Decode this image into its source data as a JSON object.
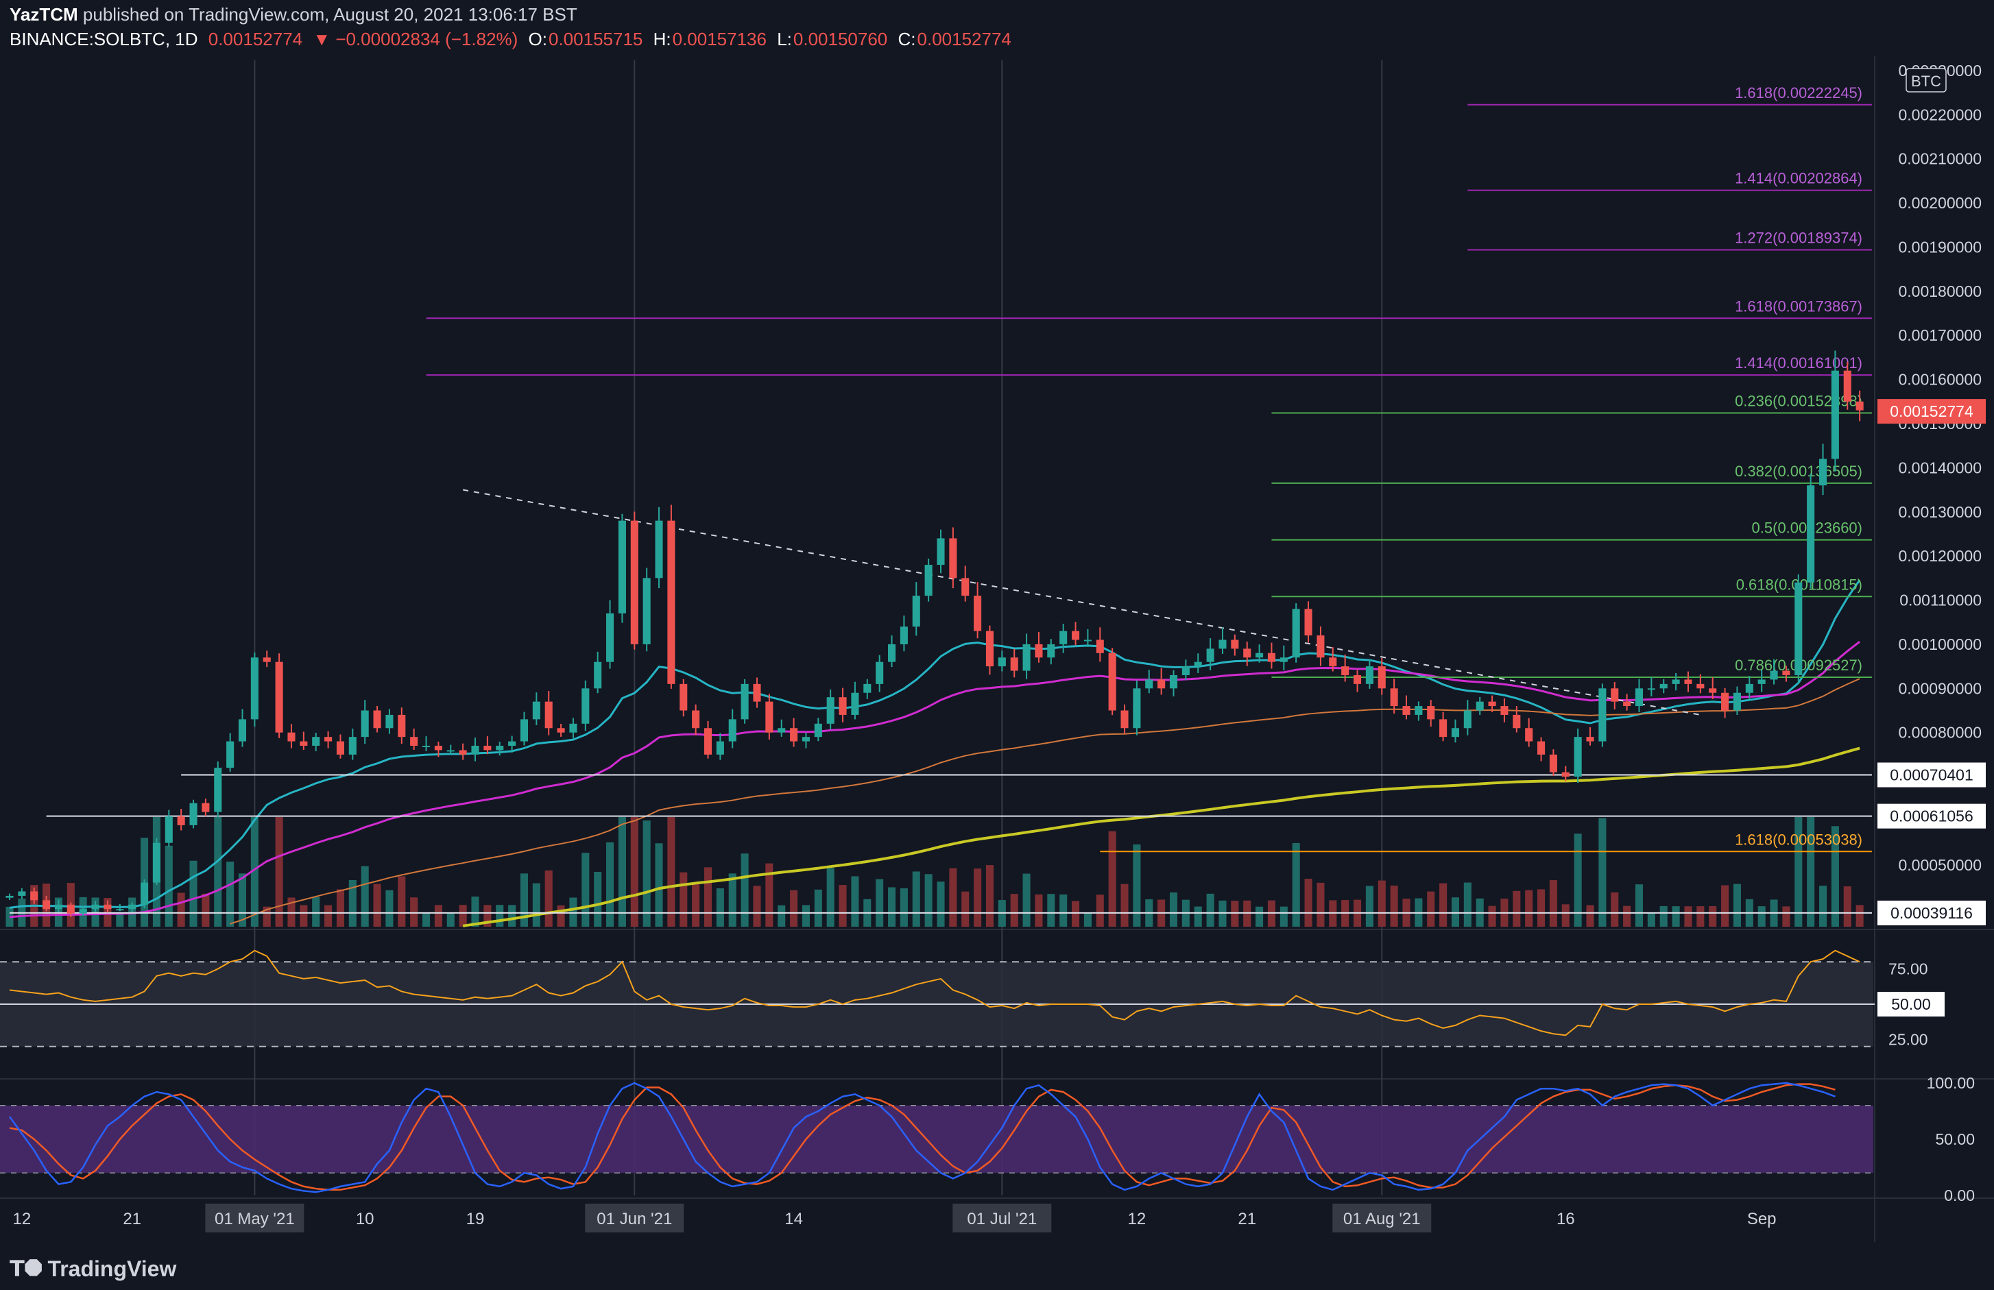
{
  "header": {
    "author": "YazTCM",
    "published": "published on TradingView.com, August 20, 2021 13:06:17 BST",
    "symbol": "BINANCE:SOLBTC, 1D",
    "last": "0.00152774",
    "change": "▼ −0.00002834 (−1.82%)",
    "o_label": "O:",
    "o_value": "0.00155715",
    "h_label": "H:",
    "h_value": "0.00157136",
    "l_label": "L:",
    "l_value": "0.00150760",
    "c_label": "C:",
    "c_value": "0.00152774"
  },
  "footer": {
    "brand": "TradingView",
    "logo_icon": "tradingview-logo-icon"
  },
  "colors": {
    "background": "#131722",
    "up": "#26a69a",
    "down": "#ef5350",
    "vol_up": "#1f6b67",
    "vol_down": "#7d2e33",
    "ema20": "#26b5c4",
    "ema50": "#d02cd0",
    "ema100": "#d2773c",
    "ema200": "#c9c924",
    "fib_purple": "#9c27b0",
    "fib_green": "#4caf50",
    "fib_orange": "#ff9800",
    "rsi": "#f7a21b",
    "stoch_k": "#2962ff",
    "stoch_d": "#f15a24",
    "stoch_band": "#4a2a6e"
  },
  "chart_data": {
    "type": "candlestick",
    "quote_currency": "BTC",
    "current_price_label": "0.00152774",
    "y_axis_ticks": [
      "0.00230000",
      "0.00220000",
      "0.00210000",
      "0.00200000",
      "0.00190000",
      "0.00180000",
      "0.00170000",
      "0.00160000",
      "0.00150000",
      "0.00140000",
      "0.00130000",
      "0.00120000",
      "0.00110000",
      "0.00100000",
      "0.00090000",
      "0.00080000",
      "0.00050000"
    ],
    "y_range": [
      0.00036,
      0.00232
    ],
    "x_axis_ticks": [
      {
        "label": "12",
        "date": "2021-04-12"
      },
      {
        "label": "21",
        "date": "2021-04-21"
      },
      {
        "label": "01 May '21",
        "date": "2021-05-01",
        "highlight": true
      },
      {
        "label": "10",
        "date": "2021-05-10"
      },
      {
        "label": "19",
        "date": "2021-05-19"
      },
      {
        "label": "01 Jun '21",
        "date": "2021-06-01",
        "highlight": true
      },
      {
        "label": "14",
        "date": "2021-06-14"
      },
      {
        "label": "01 Jul '21",
        "date": "2021-07-01",
        "highlight": true
      },
      {
        "label": "12",
        "date": "2021-07-12"
      },
      {
        "label": "21",
        "date": "2021-07-21"
      },
      {
        "label": "01 Aug '21",
        "date": "2021-08-01",
        "highlight": true
      },
      {
        "label": "16",
        "date": "2021-08-16"
      },
      {
        "label": "Sep",
        "date": "2021-09-01"
      }
    ],
    "x_range": [
      "2021-04-11",
      "2021-09-10"
    ],
    "first_candle_date": "2021-04-11",
    "closes": [
      0.00043,
      0.00044,
      0.00042,
      0.0004,
      0.00041,
      0.00039,
      0.0004,
      0.00041,
      0.0004,
      0.0004,
      0.00041,
      0.00046,
      0.00055,
      0.00061,
      0.00059,
      0.00064,
      0.00062,
      0.00072,
      0.00078,
      0.00083,
      0.00097,
      0.00096,
      0.0008,
      0.00078,
      0.00077,
      0.00079,
      0.00078,
      0.00075,
      0.00079,
      0.00085,
      0.00081,
      0.00084,
      0.00079,
      0.00077,
      0.00077,
      0.00076,
      0.00076,
      0.00075,
      0.00077,
      0.00076,
      0.00077,
      0.00078,
      0.00083,
      0.00087,
      0.00081,
      0.0008,
      0.00082,
      0.0009,
      0.00096,
      0.00107,
      0.00128,
      0.001,
      0.00115,
      0.00128,
      0.00091,
      0.00085,
      0.00081,
      0.00075,
      0.00078,
      0.00083,
      0.00091,
      0.00087,
      0.0008,
      0.00081,
      0.00078,
      0.00079,
      0.00082,
      0.00088,
      0.00084,
      0.00089,
      0.00091,
      0.00096,
      0.001,
      0.00104,
      0.00111,
      0.00118,
      0.00124,
      0.00115,
      0.00111,
      0.00103,
      0.00095,
      0.00097,
      0.00094,
      0.001,
      0.00097,
      0.001,
      0.00103,
      0.00101,
      0.00101,
      0.00098,
      0.00085,
      0.00081,
      0.0009,
      0.00092,
      0.0009,
      0.00093,
      0.00095,
      0.00096,
      0.00099,
      0.00101,
      0.00099,
      0.00097,
      0.00098,
      0.00096,
      0.00097,
      0.00108,
      0.00102,
      0.00097,
      0.00095,
      0.00093,
      0.00091,
      0.00095,
      0.0009,
      0.00086,
      0.00084,
      0.00086,
      0.00083,
      0.00079,
      0.00081,
      0.00085,
      0.00087,
      0.00086,
      0.00084,
      0.00081,
      0.00078,
      0.00075,
      0.00071,
      0.0007,
      0.00079,
      0.00078,
      0.0009,
      0.00087,
      0.00086,
      0.0009,
      0.0009,
      0.00091,
      0.00092,
      0.00091,
      0.0009,
      0.00089,
      0.00085,
      0.00089,
      0.00091,
      0.00092,
      0.00094,
      0.00093,
      0.00114,
      0.00136,
      0.00142,
      0.00162,
      0.00155,
      0.00153
    ],
    "overlay_lines": [
      {
        "name": "EMA 20",
        "color": "#26b5c4"
      },
      {
        "name": "EMA 50",
        "color": "#d02cd0"
      },
      {
        "name": "EMA 100",
        "color": "#d2773c"
      },
      {
        "name": "EMA 200",
        "color": "#c9c924"
      }
    ],
    "fib_levels": [
      {
        "label": "1.618(0.00222245)",
        "price": 0.00222245,
        "color": "#9c27b0",
        "from": "2021-08-08"
      },
      {
        "label": "1.414(0.00202864)",
        "price": 0.00202864,
        "color": "#9c27b0",
        "from": "2021-08-08"
      },
      {
        "label": "1.272(0.00189374)",
        "price": 0.00189374,
        "color": "#9c27b0",
        "from": "2021-08-08"
      },
      {
        "label": "1.618(0.00173867)",
        "price": 0.00173867,
        "color": "#9c27b0",
        "from": "2021-05-15"
      },
      {
        "label": "1.414(0.00161001)",
        "price": 0.00161001,
        "color": "#9c27b0",
        "from": "2021-05-15"
      },
      {
        "label": "0.236(0.00152398)",
        "price": 0.00152398,
        "color": "#4caf50",
        "from": "2021-07-23"
      },
      {
        "label": "0.382(0.00136505)",
        "price": 0.00136505,
        "color": "#4caf50",
        "from": "2021-07-23"
      },
      {
        "label": "0.5(0.00123660)",
        "price": 0.0012366,
        "color": "#4caf50",
        "from": "2021-07-23"
      },
      {
        "label": "0.618(0.00110815)",
        "price": 0.00110815,
        "color": "#4caf50",
        "from": "2021-07-23"
      },
      {
        "label": "0.786(0.00092527)",
        "price": 0.00092527,
        "color": "#4caf50",
        "from": "2021-07-23"
      },
      {
        "label": "1.618(0.00053038)",
        "price": 0.00053038,
        "color": "#ff9800",
        "from": "2021-07-09"
      }
    ],
    "support_levels": [
      {
        "label": "0.00070401",
        "price": 0.00070401,
        "from": "2021-04-25"
      },
      {
        "label": "0.00061056",
        "price": 0.00061056,
        "from": "2021-04-14"
      },
      {
        "label": "0.00039116",
        "price": 0.00039116,
        "from": "2021-04-11"
      }
    ],
    "trendline": {
      "from": {
        "date": "2021-05-18",
        "price": 0.00135
      },
      "to": {
        "date": "2021-08-27",
        "price": 0.00084
      }
    },
    "rsi": {
      "ticks": [
        "75.00",
        "50.00",
        "25.00"
      ],
      "midline_label": "50.00",
      "bands": [
        20,
        80
      ],
      "values": [
        60,
        59,
        58,
        57,
        58,
        55,
        53,
        52,
        53,
        54,
        55,
        59,
        70,
        72,
        70,
        72,
        71,
        75,
        80,
        82,
        88,
        84,
        72,
        70,
        68,
        69,
        67,
        65,
        66,
        67,
        62,
        63,
        59,
        57,
        56,
        55,
        54,
        53,
        55,
        54,
        55,
        56,
        60,
        64,
        58,
        56,
        58,
        63,
        66,
        71,
        80,
        59,
        53,
        56,
        50,
        48,
        47,
        46,
        47,
        49,
        54,
        51,
        49,
        49,
        48,
        48,
        50,
        53,
        50,
        53,
        54,
        56,
        58,
        61,
        64,
        66,
        68,
        60,
        57,
        53,
        48,
        49,
        47,
        51,
        49,
        50,
        50,
        50,
        50,
        49,
        41,
        39,
        45,
        47,
        45,
        48,
        49,
        50,
        51,
        52,
        50,
        49,
        50,
        49,
        49,
        56,
        52,
        48,
        47,
        45,
        43,
        46,
        42,
        39,
        38,
        40,
        36,
        33,
        35,
        39,
        42,
        41,
        40,
        37,
        34,
        31,
        29,
        28,
        35,
        34,
        50,
        47,
        46,
        50,
        50,
        51,
        52,
        50,
        49,
        48,
        45,
        48,
        50,
        51,
        53,
        52,
        70,
        80,
        82,
        88,
        84,
        80
      ]
    },
    "stoch_rsi": {
      "ticks": [
        "100.00",
        "50.00",
        "0.00"
      ],
      "bands": [
        20,
        80
      ],
      "k": [
        70,
        55,
        40,
        22,
        10,
        12,
        25,
        45,
        62,
        70,
        80,
        88,
        92,
        90,
        85,
        70,
        55,
        40,
        30,
        25,
        22,
        15,
        10,
        6,
        4,
        3,
        5,
        8,
        10,
        12,
        28,
        40,
        65,
        85,
        95,
        92,
        70,
        45,
        20,
        10,
        8,
        12,
        20,
        18,
        10,
        6,
        8,
        25,
        55,
        80,
        95,
        100,
        95,
        88,
        70,
        50,
        30,
        20,
        12,
        8,
        10,
        12,
        20,
        40,
        60,
        70,
        75,
        82,
        88,
        90,
        85,
        80,
        70,
        55,
        40,
        30,
        20,
        15,
        20,
        30,
        45,
        60,
        80,
        95,
        98,
        90,
        80,
        70,
        50,
        25,
        10,
        5,
        8,
        15,
        20,
        15,
        10,
        8,
        10,
        20,
        45,
        70,
        90,
        75,
        65,
        40,
        15,
        8,
        5,
        10,
        15,
        20,
        18,
        10,
        8,
        5,
        6,
        10,
        20,
        40,
        50,
        60,
        70,
        85,
        90,
        95,
        95,
        93,
        95,
        90,
        80,
        88,
        92,
        95,
        98,
        99,
        98,
        95,
        88,
        80,
        85,
        90,
        95,
        98,
        99,
        100,
        98,
        95,
        92,
        88
      ],
      "d": [
        60,
        58,
        50,
        40,
        28,
        18,
        15,
        22,
        35,
        50,
        62,
        72,
        82,
        88,
        90,
        85,
        75,
        62,
        50,
        40,
        32,
        25,
        18,
        12,
        8,
        6,
        5,
        5,
        7,
        9,
        15,
        25,
        40,
        60,
        78,
        88,
        88,
        80,
        60,
        40,
        22,
        14,
        12,
        15,
        16,
        14,
        10,
        12,
        25,
        45,
        68,
        85,
        96,
        96,
        90,
        78,
        58,
        40,
        25,
        15,
        11,
        10,
        13,
        20,
        35,
        50,
        62,
        72,
        78,
        84,
        87,
        85,
        80,
        72,
        60,
        48,
        36,
        26,
        20,
        22,
        30,
        42,
        58,
        75,
        88,
        94,
        92,
        85,
        75,
        60,
        40,
        22,
        12,
        9,
        12,
        15,
        15,
        13,
        11,
        13,
        22,
        40,
        62,
        78,
        76,
        65,
        45,
        25,
        12,
        8,
        9,
        12,
        15,
        16,
        13,
        9,
        7,
        7,
        10,
        18,
        30,
        42,
        52,
        62,
        72,
        82,
        88,
        92,
        94,
        94,
        90,
        86,
        88,
        91,
        95,
        97,
        98,
        97,
        94,
        88,
        84,
        85,
        88,
        92,
        95,
        98,
        99,
        99,
        97,
        94
      ]
    }
  }
}
